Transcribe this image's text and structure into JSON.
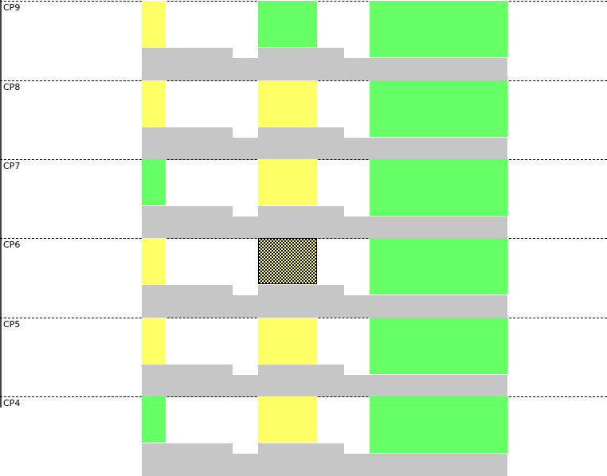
{
  "colors": {
    "yellow": "#ffff66",
    "green": "#66ff66",
    "gray": "#c6c6c7"
  },
  "rows": [
    {
      "label": "CP9",
      "cells": [
        "yellow",
        "green",
        "green"
      ]
    },
    {
      "label": "CP8",
      "cells": [
        "yellow",
        "yellow",
        "green"
      ]
    },
    {
      "label": "CP7",
      "cells": [
        "green",
        "yellow",
        "green"
      ]
    },
    {
      "label": "CP6",
      "cells": [
        "yellow",
        "selected",
        "green"
      ]
    },
    {
      "label": "CP5",
      "cells": [
        "yellow",
        "yellow",
        "green"
      ]
    },
    {
      "label": "CP4",
      "cells": [
        "green",
        "yellow",
        "green"
      ]
    }
  ]
}
